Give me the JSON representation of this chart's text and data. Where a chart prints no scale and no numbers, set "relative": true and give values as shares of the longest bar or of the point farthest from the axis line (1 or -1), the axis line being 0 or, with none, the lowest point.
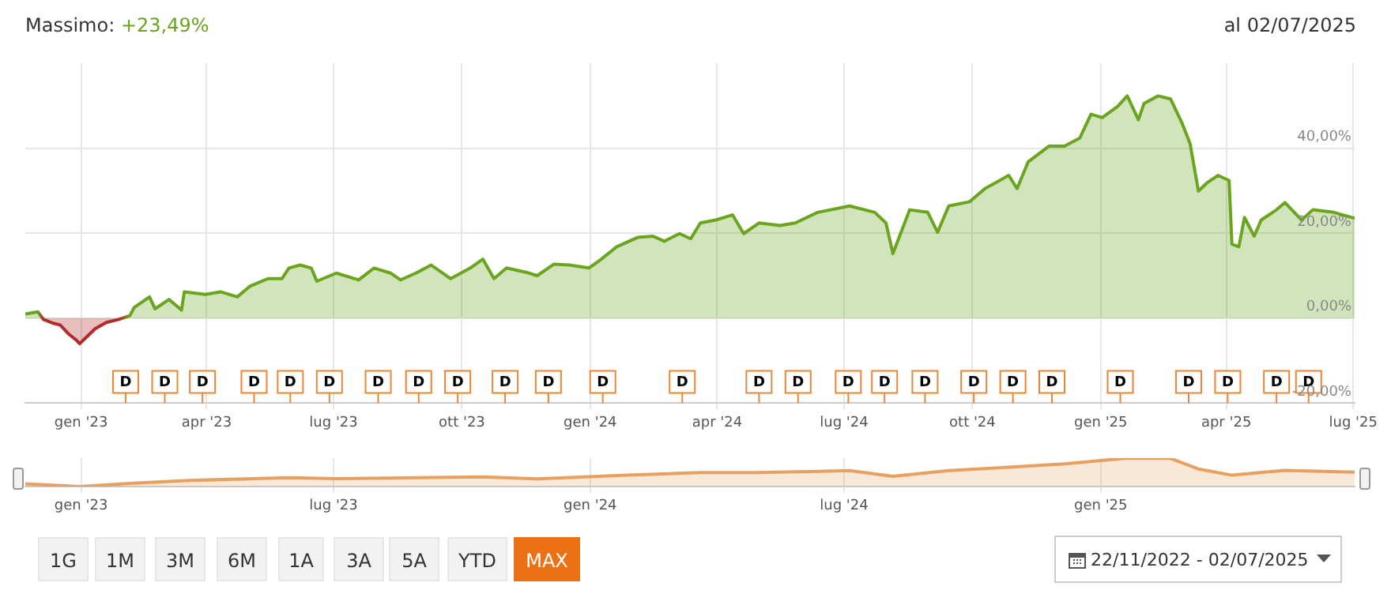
{
  "chart_data": [
    {
      "type": "area",
      "annotations": [
        "Massimo:",
        "+23,49%",
        "al 02/07/2025",
        {
          "text": "D",
          "x": "2023-02-02",
          "y": -15
        },
        {
          "text": "D",
          "x": "2023-03-02",
          "y": -15
        },
        {
          "text": "D",
          "x": "2023-03-29",
          "y": -15
        },
        {
          "text": "D",
          "x": "2023-05-05",
          "y": -15
        },
        {
          "text": "D",
          "x": "2023-05-31",
          "y": -15
        },
        {
          "text": "D",
          "x": "2023-06-28",
          "y": -15
        },
        {
          "text": "D",
          "x": "2023-08-02",
          "y": -15
        },
        {
          "text": "D",
          "x": "2023-08-31",
          "y": -15
        },
        {
          "text": "D",
          "x": "2023-09-28",
          "y": -15
        },
        {
          "text": "D",
          "x": "2023-11-01",
          "y": -15
        },
        {
          "text": "D",
          "x": "2023-12-02",
          "y": -15
        },
        {
          "text": "D",
          "x": "2024-01-10",
          "y": -15
        },
        {
          "text": "D",
          "x": "2024-03-07",
          "y": -15
        },
        {
          "text": "D",
          "x": "2024-05-01",
          "y": -15
        },
        {
          "text": "D",
          "x": "2024-05-29",
          "y": -15
        },
        {
          "text": "D",
          "x": "2024-07-04",
          "y": -15
        },
        {
          "text": "D",
          "x": "2024-07-30",
          "y": -15
        },
        {
          "text": "D",
          "x": "2024-08-28",
          "y": -15
        },
        {
          "text": "D",
          "x": "2024-10-02",
          "y": -15
        },
        {
          "text": "D",
          "x": "2024-10-30",
          "y": -15
        },
        {
          "text": "D",
          "x": "2024-11-27",
          "y": -15
        },
        {
          "text": "D",
          "x": "2025-01-15",
          "y": -15
        },
        {
          "text": "D",
          "x": "2025-03-05",
          "y": -15
        },
        {
          "text": "D",
          "x": "2025-04-02",
          "y": -15
        },
        {
          "text": "D",
          "x": "2025-05-07",
          "y": -15
        },
        {
          "text": "D",
          "x": "2025-05-30",
          "y": -15
        }
      ],
      "x": [
        "2022-11-22",
        "2022-12-01",
        "2022-12-05",
        "2022-12-12",
        "2022-12-17",
        "2022-12-23",
        "2022-12-28",
        "2022-12-31",
        "2023-01-05",
        "2023-01-11",
        "2023-01-19",
        "2023-01-28",
        "2023-02-05",
        "2023-02-08",
        "2023-02-19",
        "2023-02-23",
        "2023-03-05",
        "2023-03-14",
        "2023-03-16",
        "2023-03-31",
        "2023-04-11",
        "2023-04-23",
        "2023-05-02",
        "2023-05-15",
        "2023-05-25",
        "2023-05-30",
        "2023-06-07",
        "2023-06-15",
        "2023-06-19",
        "2023-07-03",
        "2023-07-19",
        "2023-07-30",
        "2023-08-11",
        "2023-08-18",
        "2023-08-29",
        "2023-09-09",
        "2023-09-23",
        "2023-10-07",
        "2023-10-16",
        "2023-10-24",
        "2023-11-02",
        "2023-11-16",
        "2023-11-24",
        "2023-12-06",
        "2023-12-17",
        "2023-12-31",
        "2024-01-09",
        "2024-01-20",
        "2024-02-04",
        "2024-02-15",
        "2024-02-23",
        "2024-03-05",
        "2024-03-13",
        "2024-03-20",
        "2024-03-31",
        "2024-04-12",
        "2024-04-20",
        "2024-05-01",
        "2024-05-16",
        "2024-05-27",
        "2024-06-12",
        "2024-07-05",
        "2024-07-23",
        "2024-07-31",
        "2024-08-05",
        "2024-08-17",
        "2024-08-30",
        "2024-09-06",
        "2024-09-14",
        "2024-09-29",
        "2024-10-10",
        "2024-10-27",
        "2024-11-02",
        "2024-11-10",
        "2024-11-25",
        "2024-12-06",
        "2024-12-17",
        "2024-12-25",
        "2025-01-02",
        "2025-01-13",
        "2025-01-20",
        "2025-01-28",
        "2025-02-01",
        "2025-02-11",
        "2025-02-20",
        "2025-02-28",
        "2025-03-06",
        "2025-03-12",
        "2025-03-18",
        "2025-03-26",
        "2025-04-03",
        "2025-04-05",
        "2025-04-10",
        "2025-04-14",
        "2025-04-21",
        "2025-04-26",
        "2025-05-07",
        "2025-05-13",
        "2025-05-25",
        "2025-06-02",
        "2025-06-17",
        "2025-07-02"
      ],
      "values": [
        1.0,
        1.5,
        -0.3,
        -1.2,
        -1.6,
        -3.7,
        -5.0,
        -6.0,
        -4.4,
        -2.5,
        -1.0,
        -0.3,
        0.6,
        2.5,
        5.0,
        2.2,
        4.4,
        1.9,
        6.2,
        5.6,
        6.2,
        5.0,
        7.5,
        9.3,
        9.3,
        11.8,
        12.5,
        11.8,
        8.7,
        10.6,
        9.0,
        11.8,
        10.6,
        9.0,
        10.6,
        12.5,
        9.3,
        11.8,
        13.9,
        9.3,
        11.8,
        10.8,
        10.0,
        12.7,
        12.5,
        11.8,
        13.9,
        16.8,
        19.0,
        19.3,
        18.1,
        19.9,
        18.7,
        22.4,
        23.1,
        24.3,
        19.9,
        22.4,
        21.8,
        22.4,
        24.9,
        26.4,
        24.9,
        22.4,
        15.2,
        25.5,
        24.9,
        20.2,
        26.4,
        27.4,
        30.5,
        33.6,
        30.5,
        36.8,
        40.5,
        40.5,
        42.4,
        48.0,
        47.2,
        49.8,
        52.3,
        46.7,
        50.5,
        52.3,
        51.6,
        46.1,
        41.1,
        29.9,
        31.8,
        33.6,
        32.4,
        17.4,
        16.8,
        23.7,
        19.3,
        23.1,
        25.5,
        27.2,
        23.1,
        25.5,
        24.9,
        23.5
      ],
      "color": "#6ba51f",
      "colors": [
        "#6ba51f",
        "#6ba51f",
        "#b22a2a",
        "#b22a2a",
        "#b22a2a",
        "#b22a2a",
        "#b22a2a",
        "#b22a2a",
        "#b22a2a",
        "#b22a2a",
        "#b22a2a",
        "#b22a2a",
        "#6ba51f",
        "#6ba51f",
        "#6ba51f",
        "#6ba51f",
        "#6ba51f",
        "#6ba51f",
        "#6ba51f",
        "#6ba51f",
        "#6ba51f",
        "#6ba51f",
        "#6ba51f",
        "#6ba51f",
        "#6ba51f",
        "#6ba51f",
        "#6ba51f",
        "#6ba51f",
        "#6ba51f",
        "#6ba51f",
        "#6ba51f",
        "#6ba51f",
        "#6ba51f",
        "#6ba51f",
        "#6ba51f",
        "#6ba51f",
        "#6ba51f",
        "#6ba51f",
        "#6ba51f",
        "#6ba51f",
        "#6ba51f",
        "#6ba51f",
        "#6ba51f",
        "#6ba51f",
        "#6ba51f",
        "#6ba51f",
        "#6ba51f",
        "#6ba51f",
        "#6ba51f",
        "#6ba51f",
        "#6ba51f",
        "#6ba51f",
        "#6ba51f",
        "#6ba51f",
        "#6ba51f",
        "#6ba51f",
        "#6ba51f",
        "#6ba51f",
        "#6ba51f",
        "#6ba51f",
        "#6ba51f",
        "#6ba51f",
        "#6ba51f",
        "#6ba51f",
        "#6ba51f",
        "#6ba51f",
        "#6ba51f",
        "#6ba51f",
        "#6ba51f",
        "#6ba51f",
        "#6ba51f",
        "#6ba51f",
        "#6ba51f",
        "#6ba51f",
        "#6ba51f",
        "#6ba51f",
        "#6ba51f",
        "#6ba51f",
        "#6ba51f",
        "#6ba51f",
        "#6ba51f",
        "#6ba51f",
        "#6ba51f",
        "#6ba51f",
        "#6ba51f",
        "#6ba51f",
        "#6ba51f",
        "#6ba51f",
        "#6ba51f",
        "#6ba51f",
        "#6ba51f",
        "#6ba51f",
        "#6ba51f",
        "#6ba51f",
        "#6ba51f",
        "#6ba51f",
        "#6ba51f",
        "#6ba51f",
        "#6ba51f",
        "#6ba51f",
        "#6ba51f",
        "#6ba51f"
      ],
      "xlim": [
        "2022-11-22",
        "2025-07-02"
      ],
      "xticks": [
        {
          "value": "2023-01-01",
          "label": "gen '23"
        },
        {
          "value": "2023-04-01",
          "label": "apr '23"
        },
        {
          "value": "2023-07-01",
          "label": "lug '23"
        },
        {
          "value": "2023-10-01",
          "label": "ott '23"
        },
        {
          "value": "2024-01-01",
          "label": "gen '24"
        },
        {
          "value": "2024-04-01",
          "label": "apr '24"
        },
        {
          "value": "2024-07-01",
          "label": "lug '24"
        },
        {
          "value": "2024-10-01",
          "label": "ott '24"
        },
        {
          "value": "2025-01-01",
          "label": "gen '25"
        },
        {
          "value": "2025-04-01",
          "label": "apr '25"
        },
        {
          "value": "2025-07-01",
          "label": "lug '25"
        }
      ],
      "ylim": [
        -20,
        60
      ],
      "yticks": [
        {
          "value": -20,
          "label": "-20,00%"
        },
        {
          "value": 0,
          "label": "0,00%"
        },
        {
          "value": 20,
          "label": "20,00%"
        },
        {
          "value": 40,
          "label": "40,00%"
        }
      ],
      "grid": true,
      "marker": "none"
    },
    {
      "type": "area",
      "relative": true,
      "annotations": [
        "1G",
        "1M",
        "3M",
        "6M",
        "1A",
        "3A",
        "5A",
        "YTD",
        "MAX",
        "22/11/2022 - 02/07/2025"
      ],
      "x": [
        "2022-11-22",
        "2022-12-31",
        "2023-02-05",
        "2023-03-16",
        "2023-05-30",
        "2023-07-03",
        "2023-09-09",
        "2023-10-16",
        "2023-11-24",
        "2024-01-20",
        "2024-03-20",
        "2024-05-01",
        "2024-07-05",
        "2024-08-05",
        "2024-09-14",
        "2024-10-27",
        "2024-12-06",
        "2025-01-20",
        "2025-02-20",
        "2025-03-12",
        "2025-04-05",
        "2025-05-13",
        "2025-07-02"
      ],
      "values": [
        0.1,
        0,
        0.11,
        0.21,
        0.31,
        0.28,
        0.32,
        0.34,
        0.27,
        0.39,
        0.49,
        0.49,
        0.56,
        0.36,
        0.56,
        0.68,
        0.8,
        1,
        0.99,
        0.62,
        0.4,
        0.57,
        0.51
      ],
      "color": "#e8a060",
      "xlim": [
        "2022-11-22",
        "2025-07-02"
      ],
      "xticks": [
        {
          "value": "2023-01-01",
          "label": "gen '23"
        },
        {
          "value": "2023-07-01",
          "label": "lug '23"
        },
        {
          "value": "2024-01-01",
          "label": "gen '24"
        },
        {
          "value": "2024-07-01",
          "label": "lug '24"
        },
        {
          "value": "2025-01-01",
          "label": "gen '25"
        }
      ],
      "tick_labels": "x",
      "grid": "x",
      "marker": "none"
    }
  ]
}
